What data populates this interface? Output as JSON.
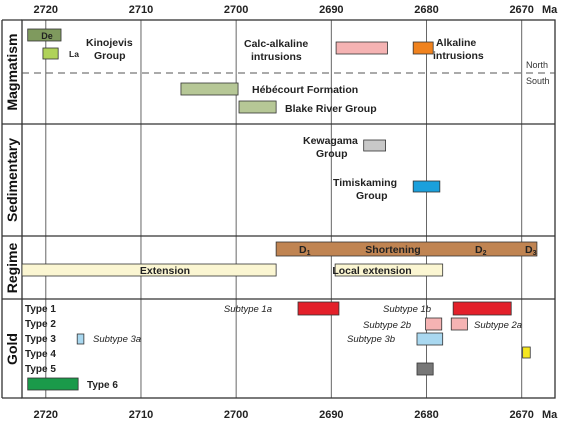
{
  "axis": {
    "unit": "Ma",
    "ticks": [
      "2720",
      "2710",
      "2700",
      "2690",
      "2680",
      "2670"
    ],
    "min_ma": 2722.5,
    "max_ma": 2666.5
  },
  "rows": [
    {
      "id": "magmatism",
      "label": "Magmatism"
    },
    {
      "id": "sedimentary",
      "label": "Sedimentary"
    },
    {
      "id": "regime",
      "label": "Regime"
    },
    {
      "id": "gold",
      "label": "Gold"
    }
  ],
  "divider": {
    "north": "North",
    "south": "South"
  },
  "bars": [
    {
      "id": "de",
      "label": "De",
      "start": 2721.9,
      "end": 2718.4,
      "color": "#7f9a5e",
      "row": "magmatism"
    },
    {
      "id": "la",
      "label": "La",
      "start": 2720.3,
      "end": 2718.7,
      "color": "#b0d25a",
      "row": "magmatism"
    },
    {
      "id": "calc-alkaline",
      "start": 2689.5,
      "end": 2684.1,
      "color": "#f5b3b3",
      "row": "magmatism"
    },
    {
      "id": "alkaline",
      "start": 2681.4,
      "end": 2679.3,
      "color": "#f0821e",
      "row": "magmatism"
    },
    {
      "id": "hebecourt",
      "start": 2705.8,
      "end": 2699.8,
      "color": "#b6c796",
      "row": "magmatism"
    },
    {
      "id": "blake-river",
      "start": 2699.7,
      "end": 2695.8,
      "color": "#b6c796",
      "row": "magmatism"
    },
    {
      "id": "kewagama",
      "start": 2686.6,
      "end": 2684.3,
      "color": "#c8c8c8",
      "row": "sedimentary"
    },
    {
      "id": "timiskaming",
      "start": 2681.4,
      "end": 2678.6,
      "color": "#1aa0dc",
      "row": "sedimentary"
    },
    {
      "id": "shortening",
      "start": 2695.8,
      "end": 2668.4,
      "color": "#c08452",
      "row": "regime"
    },
    {
      "id": "extension",
      "start": 2722.5,
      "end": 2695.8,
      "color": "#fbf6d2",
      "row": "regime"
    },
    {
      "id": "local-extension",
      "start": 2689.6,
      "end": 2678.3,
      "color": "#fbf6d2",
      "row": "regime"
    },
    {
      "id": "subtype-1a",
      "start": 2693.5,
      "end": 2689.2,
      "color": "#e3202a",
      "row": "gold"
    },
    {
      "id": "subtype-1b",
      "start": 2677.2,
      "end": 2671.1,
      "color": "#e3202a",
      "row": "gold"
    },
    {
      "id": "subtype-2b",
      "start": 2680.1,
      "end": 2678.4,
      "color": "#f5b3b3",
      "row": "gold"
    },
    {
      "id": "subtype-2a",
      "start": 2677.4,
      "end": 2675.7,
      "color": "#f5b3b3",
      "row": "gold"
    },
    {
      "id": "subtype-3a",
      "start": 2716.7,
      "end": 2716.0,
      "color": "#a9d8f0",
      "row": "gold"
    },
    {
      "id": "subtype-3b",
      "start": 2681.0,
      "end": 2678.3,
      "color": "#a9d8f0",
      "row": "gold"
    },
    {
      "id": "type-4",
      "start": 2669.9,
      "end": 2669.1,
      "color": "#f5e61e",
      "row": "gold"
    },
    {
      "id": "type-5",
      "start": 2681.0,
      "end": 2679.3,
      "color": "#777777",
      "row": "gold"
    },
    {
      "id": "type-6",
      "start": 2721.9,
      "end": 2716.6,
      "color": "#1a9a4a",
      "row": "gold"
    }
  ],
  "labels": {
    "kinojevis": [
      "Kinojevis",
      "Group"
    ],
    "calc_alkaline": [
      "Calc-alkaline",
      "intrusions"
    ],
    "alkaline": [
      "Alkaline",
      "intrusions"
    ],
    "hebecourt": "Hébécourt Formation",
    "blake_river": "Blake River Group",
    "kewagama": [
      "Kewagama",
      "Group"
    ],
    "timiskaming": [
      "Timiskaming",
      "Group"
    ],
    "shortening": "Shortening",
    "d1": "D",
    "d2": "D",
    "d3": "D",
    "sub1": "1",
    "sub2": "2",
    "sub3": "3",
    "extension": "Extension",
    "local_extension": "Local extension",
    "type1": "Type 1",
    "type2": "Type 2",
    "type3": "Type 3",
    "type4": "Type 4",
    "type5": "Type 5",
    "type6": "Type 6",
    "subtype_1a": "Subtype 1a",
    "subtype_1b": "Subtype 1b",
    "subtype_2a": "Subtype 2a",
    "subtype_2b": "Subtype 2b",
    "subtype_3a": "Subtype 3a",
    "subtype_3b": "Subtype 3b"
  },
  "colors": {
    "grid": "#666666",
    "frame": "#333333",
    "text": "#222222"
  }
}
